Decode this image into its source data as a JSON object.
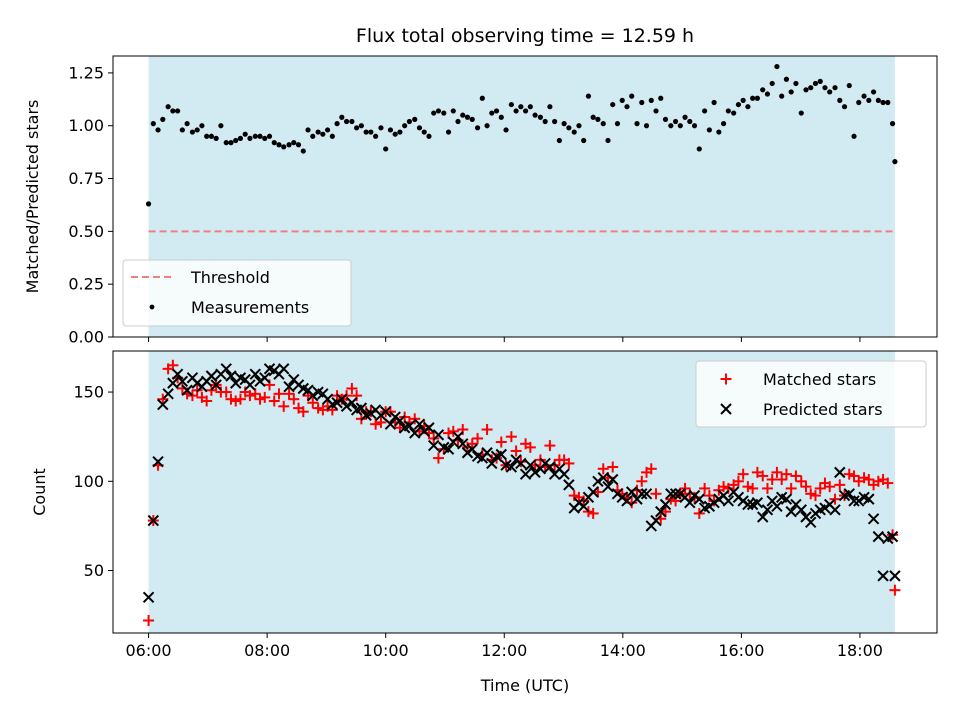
{
  "figure": {
    "title": "Flux total observing time = 12.59 h",
    "background": "#ffffff",
    "shade_color": "#add8e6"
  },
  "chart_data": [
    {
      "type": "scatter",
      "panel": "top",
      "xlabel": "",
      "ylabel": "Matched/Predicted stars",
      "xlim": [
        5.4,
        19.3
      ],
      "ylim": [
        0.0,
        1.33
      ],
      "yticks": [
        0.0,
        0.25,
        0.5,
        0.75,
        1.0,
        1.25
      ],
      "ytick_labels": [
        "0.00",
        "0.25",
        "0.50",
        "0.75",
        "1.00",
        "1.25"
      ],
      "xticks": [
        6,
        8,
        10,
        12,
        14,
        16,
        18
      ],
      "xtick_labels": [
        "",
        "",
        "",
        "",
        "",
        "",
        ""
      ],
      "shaded_span": [
        6.0,
        18.59
      ],
      "threshold": {
        "name": "Threshold",
        "y": 0.5,
        "color": "#f08080",
        "style": "dashed"
      },
      "legend": {
        "placement": "lower-left",
        "entries": [
          "Threshold",
          "Measurements"
        ]
      },
      "series": [
        {
          "name": "Measurements",
          "marker": "dot",
          "color": "#000000",
          "x": [
            6.0,
            6.08,
            6.16,
            6.24,
            6.33,
            6.41,
            6.49,
            6.57,
            6.65,
            6.74,
            6.82,
            6.9,
            6.98,
            7.06,
            7.14,
            7.22,
            7.31,
            7.39,
            7.47,
            7.55,
            7.63,
            7.71,
            7.8,
            7.88,
            7.96,
            8.04,
            8.12,
            8.2,
            8.28,
            8.37,
            8.45,
            8.53,
            8.61,
            8.69,
            8.77,
            8.86,
            8.94,
            9.02,
            9.1,
            9.18,
            9.26,
            9.34,
            9.43,
            9.51,
            9.59,
            9.67,
            9.75,
            9.83,
            9.92,
            10.0,
            10.08,
            10.16,
            10.24,
            10.32,
            10.4,
            10.49,
            10.57,
            10.65,
            10.73,
            10.81,
            10.89,
            10.98,
            11.06,
            11.14,
            11.22,
            11.3,
            11.38,
            11.46,
            11.55,
            11.63,
            11.71,
            11.79,
            11.87,
            11.95,
            12.03,
            12.12,
            12.2,
            12.28,
            12.36,
            12.44,
            12.52,
            12.61,
            12.69,
            12.77,
            12.85,
            12.93,
            13.01,
            13.09,
            13.18,
            13.26,
            13.34,
            13.42,
            13.5,
            13.58,
            13.67,
            13.75,
            13.83,
            13.91,
            13.99,
            14.07,
            14.15,
            14.24,
            14.32,
            14.4,
            14.48,
            14.56,
            14.64,
            14.72,
            14.81,
            14.89,
            14.97,
            15.05,
            15.13,
            15.21,
            15.29,
            15.38,
            15.46,
            15.54,
            15.62,
            15.7,
            15.78,
            15.87,
            15.95,
            16.03,
            16.11,
            16.19,
            16.27,
            16.36,
            16.44,
            16.52,
            16.6,
            16.68,
            16.76,
            16.84,
            16.92,
            17.01,
            17.09,
            17.17,
            17.25,
            17.33,
            17.41,
            17.49,
            17.58,
            17.66,
            17.74,
            17.82,
            17.9,
            17.98,
            18.07,
            18.15,
            18.23,
            18.31,
            18.39,
            18.47,
            18.55,
            18.59
          ],
          "y": [
            0.63,
            1.01,
            0.98,
            1.03,
            1.09,
            1.07,
            1.07,
            0.98,
            1.01,
            0.97,
            0.98,
            1.0,
            0.95,
            0.95,
            0.94,
            1.0,
            0.92,
            0.92,
            0.93,
            0.94,
            0.96,
            0.94,
            0.95,
            0.95,
            0.94,
            0.95,
            0.92,
            0.91,
            0.9,
            0.91,
            0.92,
            0.91,
            0.88,
            0.98,
            0.95,
            0.97,
            0.96,
            0.98,
            0.95,
            1.01,
            1.04,
            1.02,
            1.02,
            0.99,
            1.0,
            0.97,
            0.97,
            0.95,
            0.99,
            0.89,
            0.98,
            0.96,
            0.97,
            1.0,
            1.02,
            1.03,
            0.99,
            0.97,
            0.95,
            1.06,
            1.07,
            1.06,
            0.97,
            1.07,
            1.02,
            1.05,
            1.04,
            1.03,
            0.99,
            1.13,
            1.0,
            1.06,
            1.07,
            1.04,
            0.98,
            1.1,
            1.07,
            1.09,
            1.07,
            1.09,
            1.05,
            1.04,
            1.02,
            1.09,
            1.02,
            0.93,
            1.01,
            0.99,
            0.97,
            1.0,
            0.93,
            1.14,
            1.04,
            1.03,
            1.01,
            0.93,
            1.1,
            1.01,
            1.12,
            1.09,
            1.14,
            1.01,
            1.11,
            1.0,
            1.12,
            1.07,
            1.13,
            1.03,
            1.0,
            1.02,
            1.0,
            1.04,
            1.02,
            1.0,
            0.89,
            1.07,
            0.98,
            1.11,
            0.97,
            1.01,
            1.07,
            1.06,
            1.1,
            1.12,
            1.09,
            1.13,
            1.13,
            1.17,
            1.15,
            1.2,
            1.28,
            1.14,
            1.22,
            1.16,
            1.2,
            1.06,
            1.17,
            1.18,
            1.2,
            1.21,
            1.18,
            1.16,
            1.18,
            1.12,
            1.09,
            1.19,
            0.95,
            1.11,
            1.14,
            1.12,
            1.16,
            1.12,
            1.11,
            1.11,
            1.01,
            0.83
          ]
        }
      ]
    },
    {
      "type": "scatter",
      "panel": "bottom",
      "xlabel": "Time (UTC)",
      "ylabel": "Count",
      "xlim": [
        5.4,
        19.3
      ],
      "ylim": [
        15,
        173
      ],
      "yticks": [
        50,
        100,
        150
      ],
      "ytick_labels": [
        "50",
        "100",
        "150"
      ],
      "xticks": [
        6,
        8,
        10,
        12,
        14,
        16,
        18
      ],
      "xtick_labels": [
        "06:00",
        "08:00",
        "10:00",
        "12:00",
        "14:00",
        "16:00",
        "18:00"
      ],
      "shaded_span": [
        6.0,
        18.59
      ],
      "legend": {
        "placement": "top-right",
        "entries": [
          "Matched stars",
          "Predicted stars"
        ]
      },
      "series": [
        {
          "name": "Matched stars",
          "marker": "plus",
          "color": "#ff0000",
          "x": [
            6.0,
            6.08,
            6.16,
            6.24,
            6.33,
            6.41,
            6.49,
            6.57,
            6.65,
            6.74,
            6.82,
            6.9,
            6.98,
            7.06,
            7.14,
            7.22,
            7.31,
            7.39,
            7.47,
            7.55,
            7.63,
            7.71,
            7.8,
            7.88,
            7.96,
            8.04,
            8.12,
            8.2,
            8.28,
            8.37,
            8.45,
            8.53,
            8.61,
            8.69,
            8.77,
            8.86,
            8.94,
            9.02,
            9.1,
            9.18,
            9.26,
            9.34,
            9.43,
            9.51,
            9.59,
            9.67,
            9.75,
            9.83,
            9.92,
            10.0,
            10.08,
            10.16,
            10.24,
            10.32,
            10.4,
            10.49,
            10.57,
            10.65,
            10.73,
            10.81,
            10.89,
            10.98,
            11.06,
            11.14,
            11.22,
            11.3,
            11.38,
            11.46,
            11.55,
            11.63,
            11.71,
            11.79,
            11.87,
            11.95,
            12.03,
            12.12,
            12.2,
            12.28,
            12.36,
            12.44,
            12.52,
            12.61,
            12.69,
            12.77,
            12.85,
            12.93,
            13.01,
            13.09,
            13.18,
            13.26,
            13.34,
            13.42,
            13.5,
            13.58,
            13.67,
            13.75,
            13.83,
            13.91,
            13.99,
            14.07,
            14.15,
            14.24,
            14.32,
            14.4,
            14.48,
            14.56,
            14.64,
            14.72,
            14.81,
            14.89,
            14.97,
            15.05,
            15.13,
            15.21,
            15.29,
            15.38,
            15.46,
            15.54,
            15.62,
            15.7,
            15.78,
            15.87,
            15.95,
            16.03,
            16.11,
            16.19,
            16.27,
            16.36,
            16.44,
            16.52,
            16.6,
            16.68,
            16.76,
            16.84,
            16.92,
            17.01,
            17.09,
            17.17,
            17.25,
            17.33,
            17.41,
            17.49,
            17.58,
            17.66,
            17.74,
            17.82,
            17.9,
            17.98,
            18.07,
            18.15,
            18.23,
            18.31,
            18.39,
            18.47,
            18.55,
            18.59
          ],
          "y": [
            22,
            78,
            109,
            146,
            163,
            165,
            158,
            152,
            149,
            148,
            151,
            147,
            145,
            151,
            154,
            150,
            150,
            146,
            145,
            146,
            150,
            148,
            149,
            146,
            147,
            154,
            145,
            149,
            142,
            149,
            146,
            141,
            139,
            148,
            144,
            141,
            140,
            142,
            140,
            148,
            146,
            148,
            152,
            148,
            135,
            139,
            139,
            132,
            133,
            139,
            139,
            133,
            130,
            136,
            133,
            135,
            128,
            131,
            127,
            124,
            113,
            118,
            127,
            128,
            123,
            129,
            119,
            121,
            124,
            115,
            129,
            112,
            113,
            122,
            109,
            125,
            117,
            111,
            121,
            119,
            109,
            112,
            108,
            120,
            109,
            112,
            112,
            110,
            92,
            91,
            89,
            83,
            82,
            94,
            107,
            102,
            108,
            95,
            93,
            91,
            88,
            95,
            100,
            105,
            107,
            93,
            79,
            83,
            90,
            89,
            93,
            96,
            93,
            91,
            82,
            96,
            92,
            89,
            95,
            97,
            96,
            98,
            100,
            104,
            97,
            96,
            105,
            103,
            96,
            101,
            105,
            101,
            104,
            96,
            103,
            100,
            97,
            93,
            92,
            96,
            99,
            97,
            90,
            98,
            92,
            104,
            103,
            100,
            102,
            101,
            98,
            100,
            101,
            99,
            70,
            39
          ]
        },
        {
          "name": "Predicted stars",
          "marker": "x",
          "color": "#000000",
          "x": [
            6.0,
            6.08,
            6.16,
            6.24,
            6.33,
            6.41,
            6.49,
            6.57,
            6.65,
            6.74,
            6.82,
            6.9,
            6.98,
            7.06,
            7.14,
            7.22,
            7.31,
            7.39,
            7.47,
            7.55,
            7.63,
            7.71,
            7.8,
            7.88,
            7.96,
            8.04,
            8.12,
            8.2,
            8.28,
            8.37,
            8.45,
            8.53,
            8.61,
            8.69,
            8.77,
            8.86,
            8.94,
            9.02,
            9.1,
            9.18,
            9.26,
            9.34,
            9.43,
            9.51,
            9.59,
            9.67,
            9.75,
            9.83,
            9.92,
            10.0,
            10.08,
            10.16,
            10.24,
            10.32,
            10.4,
            10.49,
            10.57,
            10.65,
            10.73,
            10.81,
            10.89,
            10.98,
            11.06,
            11.14,
            11.22,
            11.3,
            11.38,
            11.46,
            11.55,
            11.63,
            11.71,
            11.79,
            11.87,
            11.95,
            12.03,
            12.12,
            12.2,
            12.28,
            12.36,
            12.44,
            12.52,
            12.61,
            12.69,
            12.77,
            12.85,
            12.93,
            13.01,
            13.09,
            13.18,
            13.26,
            13.34,
            13.42,
            13.5,
            13.58,
            13.67,
            13.75,
            13.83,
            13.91,
            13.99,
            14.07,
            14.15,
            14.24,
            14.32,
            14.4,
            14.48,
            14.56,
            14.64,
            14.72,
            14.81,
            14.89,
            14.97,
            15.05,
            15.13,
            15.21,
            15.29,
            15.38,
            15.46,
            15.54,
            15.62,
            15.7,
            15.78,
            15.87,
            15.95,
            16.03,
            16.11,
            16.19,
            16.27,
            16.36,
            16.44,
            16.52,
            16.6,
            16.68,
            16.76,
            16.84,
            16.92,
            17.01,
            17.09,
            17.17,
            17.25,
            17.33,
            17.41,
            17.49,
            17.58,
            17.66,
            17.74,
            17.82,
            17.9,
            17.98,
            18.07,
            18.15,
            18.23,
            18.31,
            18.39,
            18.47,
            18.55,
            18.59
          ],
          "y": [
            35,
            78,
            111,
            143,
            149,
            155,
            160,
            156,
            151,
            158,
            155,
            153,
            156,
            159,
            154,
            160,
            163,
            159,
            155,
            158,
            157,
            154,
            160,
            156,
            158,
            163,
            162,
            160,
            163,
            153,
            157,
            154,
            152,
            151,
            148,
            150,
            149,
            146,
            143,
            144,
            146,
            142,
            144,
            140,
            141,
            137,
            138,
            140,
            137,
            139,
            132,
            136,
            134,
            130,
            131,
            127,
            132,
            128,
            130,
            120,
            126,
            119,
            118,
            122,
            125,
            121,
            116,
            118,
            114,
            113,
            116,
            110,
            114,
            115,
            109,
            108,
            112,
            110,
            104,
            109,
            105,
            107,
            110,
            108,
            104,
            107,
            104,
            98,
            85,
            88,
            86,
            91,
            94,
            100,
            102,
            97,
            101,
            93,
            91,
            89,
            94,
            90,
            93,
            93,
            75,
            78,
            83,
            87,
            93,
            93,
            93,
            91,
            88,
            92,
            90,
            85,
            86,
            88,
            90,
            92,
            89,
            94,
            91,
            89,
            87,
            87,
            88,
            80,
            84,
            89,
            86,
            91,
            90,
            83,
            87,
            84,
            80,
            77,
            82,
            84,
            85,
            87,
            84,
            105,
            92,
            93,
            89,
            89,
            91,
            90,
            79,
            69,
            47,
            68,
            69,
            47
          ]
        }
      ]
    }
  ]
}
